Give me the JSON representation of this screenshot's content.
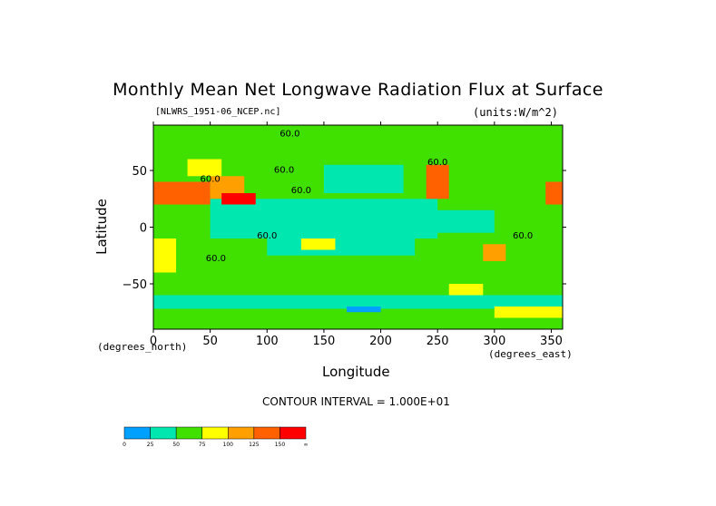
{
  "chart_data": {
    "type": "heatmap",
    "title": "Monthly Mean Net Longwave Radiation Flux at Surface",
    "dataset_label": "[NLWRS_1951-06_NCEP.nc]",
    "units_label": "(units:W/m^2)",
    "xlabel": "Longitude",
    "ylabel": "Latitude",
    "x_unit_label": "(degrees_east)",
    "y_unit_label": "(degrees_north)",
    "xlim": [
      0,
      360
    ],
    "ylim": [
      -90,
      90
    ],
    "x_ticks": [
      0,
      50,
      100,
      150,
      200,
      250,
      300,
      350
    ],
    "y_ticks": [
      50,
      0,
      -50
    ],
    "contour_interval_text": "CONTOUR INTERVAL = 1.000E+01",
    "contour_labels": [
      "60.0",
      "60.0",
      "60.0",
      "60.0",
      "60.0",
      "60.0",
      "60.0",
      "60.0"
    ],
    "colorbar": {
      "levels": [
        "0",
        "25",
        "50",
        "75",
        "100",
        "125",
        "150",
        "∞"
      ],
      "colors": [
        "#00a0ff",
        "#00e8b0",
        "#40e000",
        "#ffff00",
        "#ffa000",
        "#ff6000",
        "#ff0000"
      ]
    },
    "regions": [
      {
        "lon": [
          0,
          360
        ],
        "lat": [
          -90,
          90
        ],
        "level": 2
      },
      {
        "lon": [
          50,
          250
        ],
        "lat": [
          -10,
          25
        ],
        "level": 1
      },
      {
        "lon": [
          100,
          230
        ],
        "lat": [
          -25,
          -10
        ],
        "level": 1
      },
      {
        "lon": [
          240,
          300
        ],
        "lat": [
          -5,
          15
        ],
        "level": 1
      },
      {
        "lon": [
          150,
          220
        ],
        "lat": [
          30,
          55
        ],
        "level": 1
      },
      {
        "lon": [
          0,
          20
        ],
        "lat": [
          -40,
          -10
        ],
        "level": 3
      },
      {
        "lon": [
          0,
          50
        ],
        "lat": [
          20,
          40
        ],
        "level": 5
      },
      {
        "lon": [
          50,
          80
        ],
        "lat": [
          25,
          45
        ],
        "level": 4
      },
      {
        "lon": [
          30,
          60
        ],
        "lat": [
          45,
          60
        ],
        "level": 3
      },
      {
        "lon": [
          60,
          90
        ],
        "lat": [
          20,
          30
        ],
        "level": 6
      },
      {
        "lon": [
          240,
          260
        ],
        "lat": [
          25,
          55
        ],
        "level": 5
      },
      {
        "lon": [
          345,
          360
        ],
        "lat": [
          20,
          40
        ],
        "level": 5
      },
      {
        "lon": [
          130,
          160
        ],
        "lat": [
          -20,
          -10
        ],
        "level": 3
      },
      {
        "lon": [
          260,
          290
        ],
        "lat": [
          -60,
          -50
        ],
        "level": 3
      },
      {
        "lon": [
          0,
          360
        ],
        "lat": [
          -72,
          -60
        ],
        "level": 1
      },
      {
        "lon": [
          300,
          360
        ],
        "lat": [
          -80,
          -70
        ],
        "level": 3
      },
      {
        "lon": [
          170,
          200
        ],
        "lat": [
          -75,
          -70
        ],
        "level": 0
      },
      {
        "lon": [
          290,
          310
        ],
        "lat": [
          -30,
          -15
        ],
        "level": 4
      }
    ]
  }
}
